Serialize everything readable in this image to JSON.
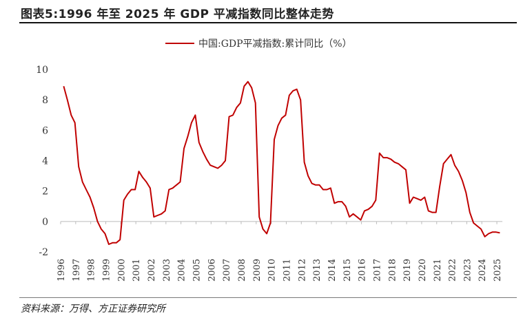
{
  "title": "图表5:1996 年至 2025 年 GDP 平减指数同比整体走势",
  "source": "资料来源：万得、方正证券研究所",
  "chart_data": {
    "type": "line",
    "title": "",
    "xlabel": "",
    "ylabel": "",
    "ylim": [
      -2,
      10
    ],
    "yticks": [
      -2,
      0,
      2,
      4,
      6,
      8,
      10
    ],
    "xticks": [
      "1996",
      "1997",
      "1998",
      "1999",
      "2000",
      "2001",
      "2002",
      "2003",
      "2004",
      "2005",
      "2006",
      "2007",
      "2008",
      "2009",
      "2010",
      "2011",
      "2012",
      "2013",
      "2014",
      "2015",
      "2016",
      "2017",
      "2018",
      "2019",
      "2020",
      "2021",
      "2022",
      "2023",
      "2024",
      "2025"
    ],
    "grid": false,
    "legend": "top-center",
    "color": "#c00000",
    "frequency": "quarterly",
    "start": "1996Q1",
    "series": [
      {
        "name": "中国:GDP平减指数:累计同比（%）",
        "values": [
          8.9,
          8.0,
          7.0,
          6.5,
          3.6,
          2.6,
          2.1,
          1.6,
          0.9,
          0.0,
          -0.5,
          -0.8,
          -1.5,
          -1.4,
          -1.4,
          -1.2,
          1.4,
          1.8,
          2.1,
          2.1,
          3.3,
          2.9,
          2.6,
          2.2,
          0.3,
          0.4,
          0.5,
          0.7,
          2.1,
          2.2,
          2.4,
          2.6,
          4.8,
          5.6,
          6.5,
          7.0,
          5.2,
          4.6,
          4.1,
          3.7,
          3.6,
          3.5,
          3.7,
          4.0,
          6.9,
          7.0,
          7.5,
          7.8,
          8.9,
          9.2,
          8.8,
          7.8,
          0.3,
          -0.5,
          -0.8,
          -0.1,
          5.4,
          6.3,
          6.8,
          7.0,
          8.3,
          8.6,
          8.7,
          8.0,
          3.9,
          3.0,
          2.5,
          2.4,
          2.4,
          2.1,
          2.1,
          2.2,
          1.2,
          1.3,
          1.3,
          1.0,
          0.3,
          0.5,
          0.3,
          0.1,
          0.7,
          0.8,
          1.0,
          1.4,
          4.5,
          4.2,
          4.2,
          4.1,
          3.9,
          3.8,
          3.6,
          3.4,
          1.2,
          1.6,
          1.5,
          1.4,
          1.6,
          0.7,
          0.6,
          0.6,
          2.3,
          3.8,
          4.1,
          4.4,
          3.7,
          3.3,
          2.7,
          1.9,
          0.6,
          -0.1,
          -0.3,
          -0.5,
          -1.0,
          -0.8,
          -0.7,
          -0.7,
          -0.75
        ]
      }
    ]
  }
}
